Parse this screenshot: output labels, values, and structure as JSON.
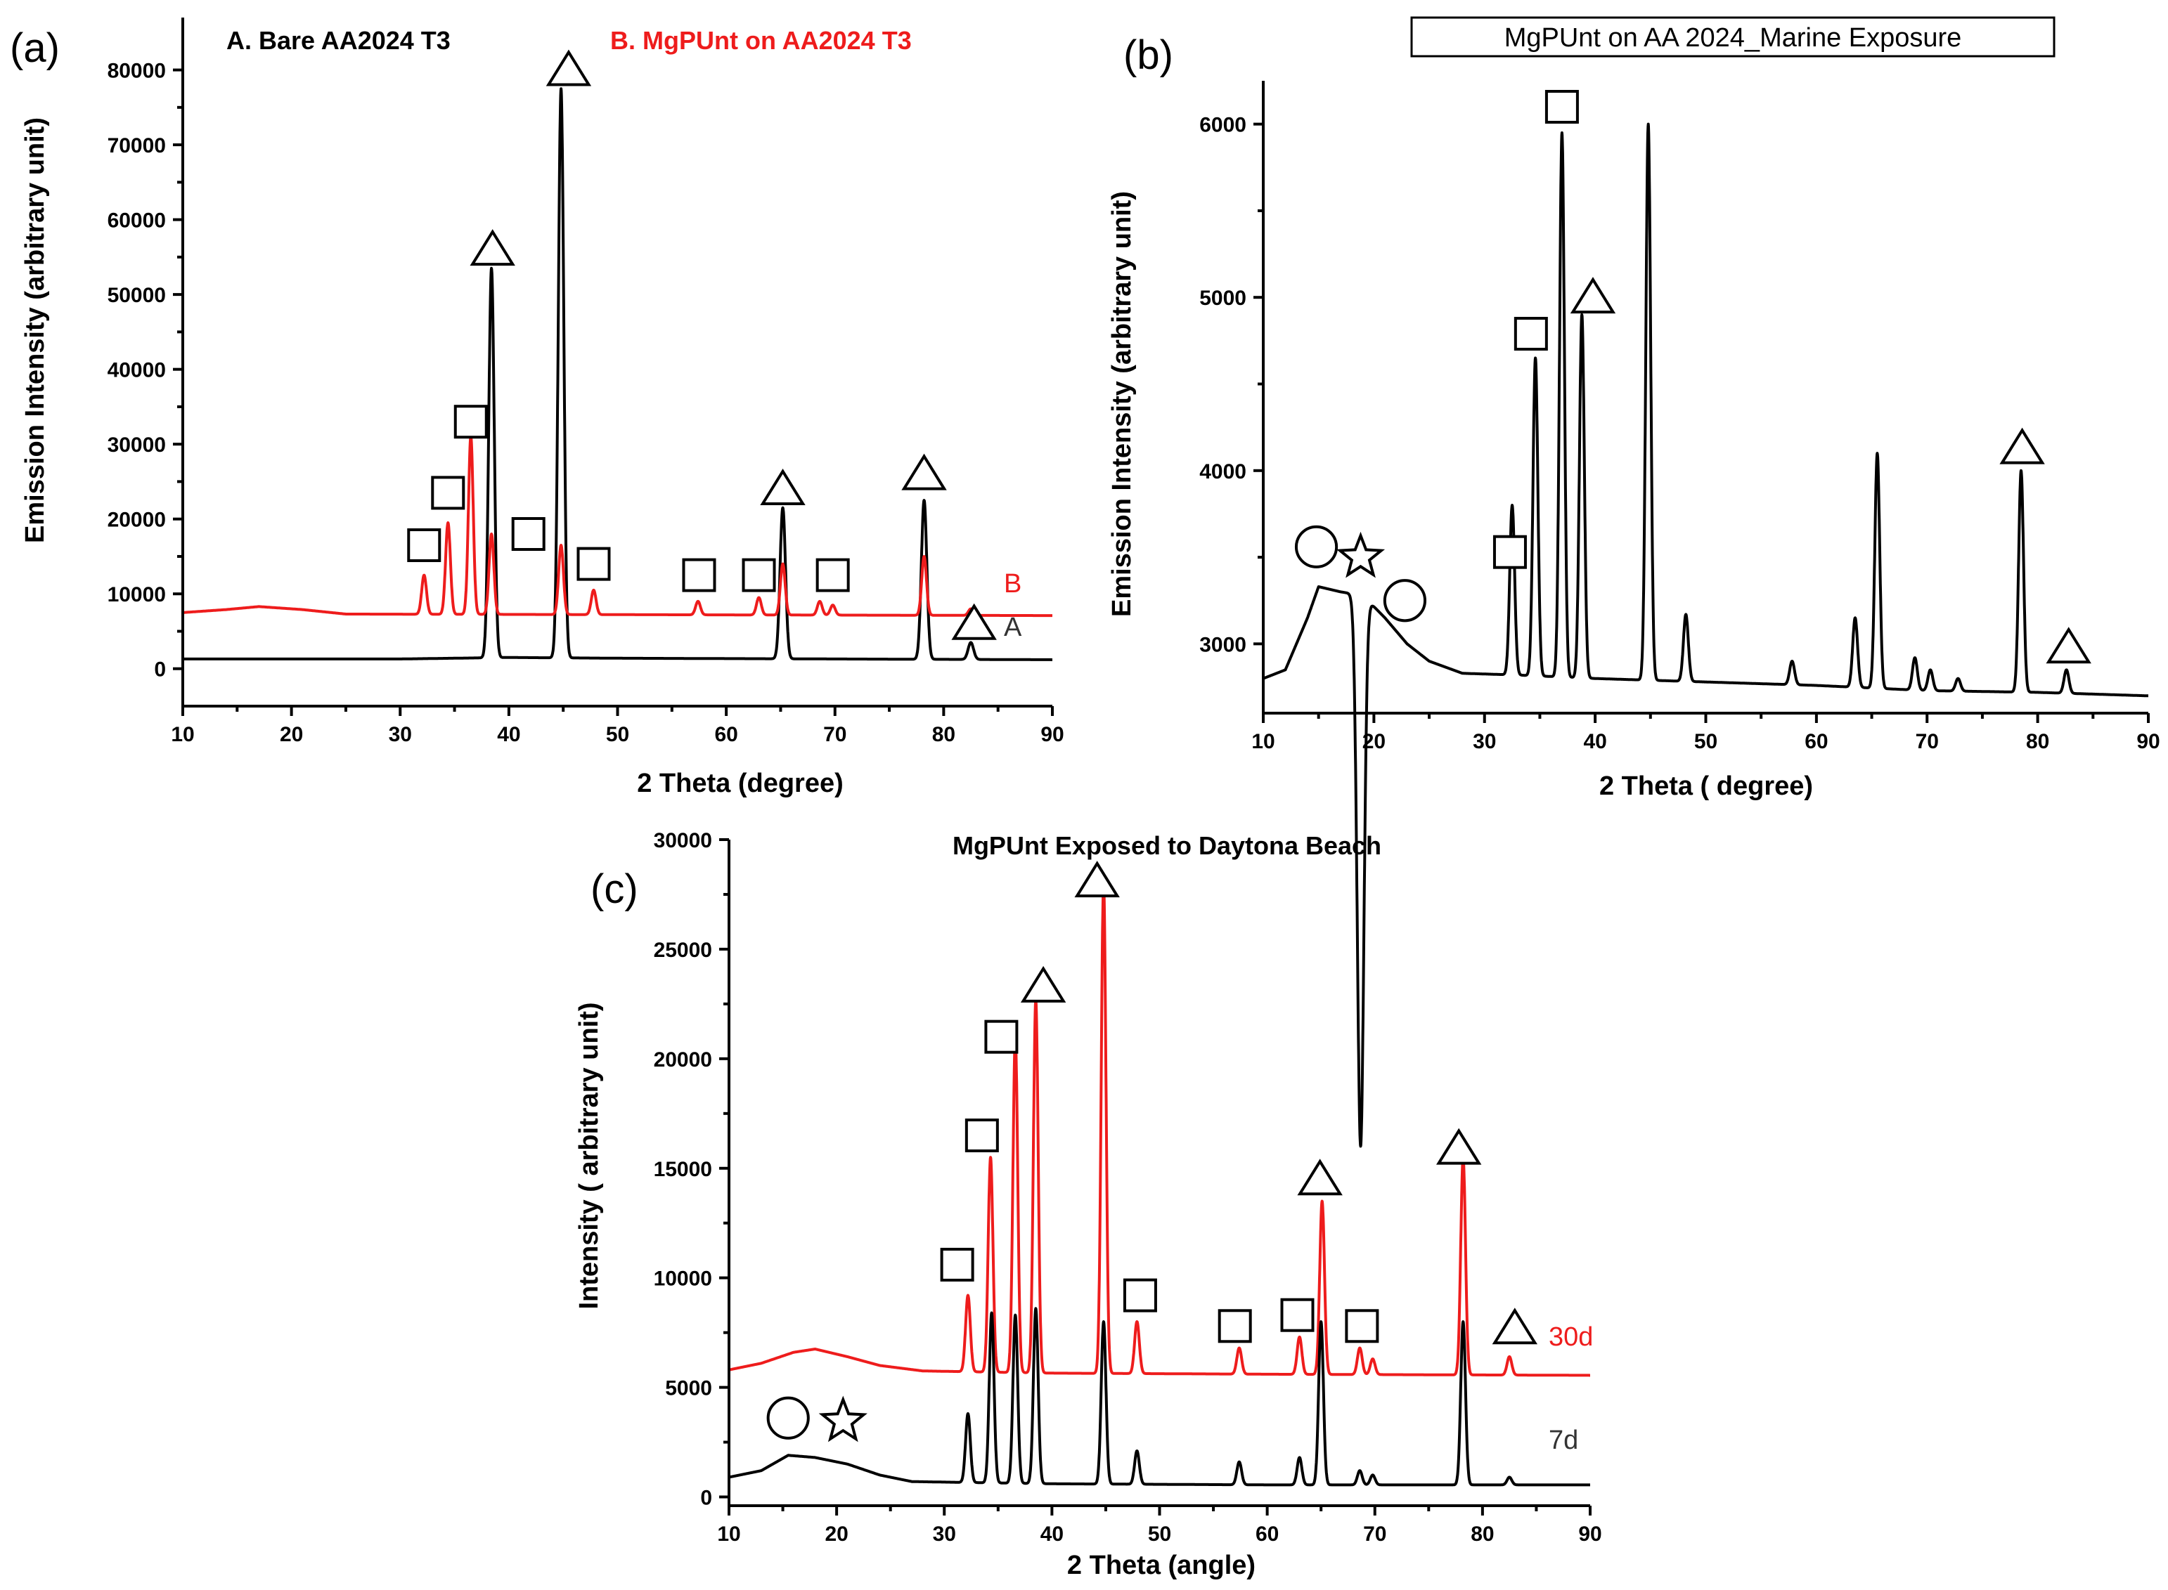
{
  "colors": {
    "black": "#000000",
    "red": "#ee1c1c"
  },
  "chart_data": [
    {
      "id": "a",
      "panel_label": "(a)",
      "type": "line",
      "title": "",
      "legend_texts": [
        "A. Bare AA2024 T3",
        "B. MgPUnt on AA2024 T3"
      ],
      "xlabel": "2 Theta (degree)",
      "ylabel": "Emission Intensity (arbitrary unit)",
      "xlim": [
        10,
        90
      ],
      "ylim": [
        -5000,
        87000
      ],
      "xticks": [
        10,
        20,
        30,
        40,
        50,
        60,
        70,
        80,
        90
      ],
      "yticks": [
        0,
        10000,
        20000,
        30000,
        40000,
        50000,
        60000,
        70000,
        80000
      ],
      "series": [
        {
          "name": "A",
          "color": "#000000",
          "end_label": "A",
          "baseline": [
            [
              10,
              1300
            ],
            [
              30,
              1300
            ],
            [
              40,
              1500
            ],
            [
              50,
              1400
            ],
            [
              70,
              1300
            ],
            [
              90,
              1200
            ]
          ],
          "peaks": [
            [
              38.4,
              53500,
              0.25
            ],
            [
              44.8,
              77500,
              0.25
            ],
            [
              65.2,
              21500,
              0.25
            ],
            [
              78.2,
              22500,
              0.25
            ],
            [
              82.5,
              3500,
              0.25
            ]
          ]
        },
        {
          "name": "B",
          "color": "#ee1c1c",
          "end_label": "B",
          "baseline": [
            [
              10,
              7500
            ],
            [
              14,
              7900
            ],
            [
              17,
              8300
            ],
            [
              21,
              7900
            ],
            [
              25,
              7300
            ],
            [
              90,
              7100
            ]
          ],
          "peaks": [
            [
              32.2,
              12500,
              0.22
            ],
            [
              34.4,
              19500,
              0.22
            ],
            [
              36.5,
              31000,
              0.22
            ],
            [
              38.4,
              18000,
              0.22
            ],
            [
              44.8,
              16500,
              0.22
            ],
            [
              47.8,
              10500,
              0.22
            ],
            [
              57.4,
              9000,
              0.22
            ],
            [
              63.0,
              9500,
              0.22
            ],
            [
              65.2,
              14000,
              0.22
            ],
            [
              68.6,
              9000,
              0.22
            ],
            [
              69.8,
              8500,
              0.22
            ],
            [
              78.2,
              15000,
              0.22
            ],
            [
              82.5,
              8000,
              0.22
            ]
          ]
        }
      ],
      "markers": [
        {
          "shape": "square",
          "x": 32.2,
          "y": 16500
        },
        {
          "shape": "square",
          "x": 34.4,
          "y": 23500
        },
        {
          "shape": "square",
          "x": 36.5,
          "y": 33000
        },
        {
          "shape": "triangle",
          "x": 38.5,
          "y": 56000
        },
        {
          "shape": "square",
          "x": 41.8,
          "y": 18000
        },
        {
          "shape": "triangle",
          "x": 45.5,
          "y": 80000
        },
        {
          "shape": "square",
          "x": 47.8,
          "y": 14000
        },
        {
          "shape": "square",
          "x": 57.5,
          "y": 12500
        },
        {
          "shape": "square",
          "x": 63.0,
          "y": 12500
        },
        {
          "shape": "triangle",
          "x": 65.2,
          "y": 24000
        },
        {
          "shape": "square",
          "x": 69.8,
          "y": 12500
        },
        {
          "shape": "triangle",
          "x": 78.2,
          "y": 26000
        },
        {
          "shape": "triangle",
          "x": 82.8,
          "y": 6000
        }
      ]
    },
    {
      "id": "b",
      "panel_label": "(b)",
      "type": "line",
      "title": "MgPUnt on AA 2024_Marine Exposure",
      "xlabel": "2 Theta ( degree)",
      "ylabel": "Emission Intensity (arbitrary unit)",
      "xlim": [
        10,
        90
      ],
      "ylim": [
        2600,
        6250
      ],
      "xticks": [
        10,
        20,
        30,
        40,
        50,
        60,
        70,
        80,
        90
      ],
      "yticks": [
        3000,
        4000,
        5000,
        6000
      ],
      "series": [
        {
          "name": "MgPUnt marine",
          "color": "#000000",
          "end_label": "",
          "baseline": [
            [
              10,
              2800
            ],
            [
              12,
              2850
            ],
            [
              14,
              3150
            ],
            [
              15,
              3330
            ],
            [
              17,
              3300
            ],
            [
              19,
              3280
            ],
            [
              21,
              3150
            ],
            [
              23,
              3000
            ],
            [
              25,
              2900
            ],
            [
              28,
              2830
            ],
            [
              33,
              2820
            ],
            [
              40,
              2800
            ],
            [
              50,
              2780
            ],
            [
              60,
              2760
            ],
            [
              70,
              2730
            ],
            [
              80,
              2720
            ],
            [
              90,
              2700
            ]
          ],
          "peaks": [
            [
              18.8,
              100,
              0.3
            ],
            [
              32.5,
              3800,
              0.22
            ],
            [
              34.6,
              4650,
              0.22
            ],
            [
              37.0,
              5950,
              0.22
            ],
            [
              38.8,
              4900,
              0.22
            ],
            [
              44.8,
              6000,
              0.22
            ],
            [
              48.2,
              3170,
              0.22
            ],
            [
              57.8,
              2900,
              0.22
            ],
            [
              63.5,
              3150,
              0.22
            ],
            [
              65.5,
              4100,
              0.22
            ],
            [
              68.9,
              2920,
              0.22
            ],
            [
              70.3,
              2850,
              0.22
            ],
            [
              72.8,
              2800,
              0.22
            ],
            [
              78.5,
              4000,
              0.22
            ],
            [
              82.6,
              2850,
              0.22
            ]
          ]
        }
      ],
      "markers": [
        {
          "shape": "circle",
          "x": 14.8,
          "y": 3560
        },
        {
          "shape": "star",
          "x": 18.8,
          "y": 3500
        },
        {
          "shape": "circle",
          "x": 22.8,
          "y": 3250
        },
        {
          "shape": "square",
          "x": 32.3,
          "y": 3530
        },
        {
          "shape": "square",
          "x": 34.2,
          "y": 4790
        },
        {
          "shape": "square",
          "x": 37.0,
          "y": 6100
        },
        {
          "shape": "triangle",
          "x": 39.8,
          "y": 5000
        },
        {
          "shape": "triangle",
          "x": 78.6,
          "y": 4130
        },
        {
          "shape": "triangle",
          "x": 82.8,
          "y": 2980
        }
      ]
    },
    {
      "id": "c",
      "panel_label": "(c)",
      "type": "line",
      "title": "MgPUnt Exposed to Daytona Beach",
      "xlabel": "2 Theta (angle)",
      "ylabel": "Intensity ( arbitrary unit)",
      "xlim": [
        10,
        90
      ],
      "ylim": [
        -400,
        30000
      ],
      "xticks": [
        10,
        20,
        30,
        40,
        50,
        60,
        70,
        80,
        90
      ],
      "yticks": [
        0,
        5000,
        10000,
        15000,
        20000,
        25000,
        30000
      ],
      "series": [
        {
          "name": "30d",
          "color": "#ee1c1c",
          "end_label": "30d",
          "baseline": [
            [
              10,
              5800
            ],
            [
              13,
              6100
            ],
            [
              16,
              6600
            ],
            [
              18,
              6750
            ],
            [
              21,
              6400
            ],
            [
              24,
              6000
            ],
            [
              28,
              5750
            ],
            [
              40,
              5650
            ],
            [
              60,
              5600
            ],
            [
              90,
              5550
            ]
          ],
          "peaks": [
            [
              32.2,
              9200,
              0.22
            ],
            [
              34.3,
              15500,
              0.22
            ],
            [
              36.6,
              21000,
              0.22
            ],
            [
              38.5,
              22700,
              0.22
            ],
            [
              44.8,
              28000,
              0.22
            ],
            [
              47.9,
              8000,
              0.22
            ],
            [
              57.4,
              6800,
              0.22
            ],
            [
              63.0,
              7300,
              0.22
            ],
            [
              65.1,
              13500,
              0.22
            ],
            [
              68.6,
              6800,
              0.22
            ],
            [
              69.8,
              6300,
              0.22
            ],
            [
              78.2,
              15500,
              0.22
            ],
            [
              82.5,
              6400,
              0.22
            ]
          ]
        },
        {
          "name": "7d",
          "color": "#000000",
          "end_label": "7d",
          "baseline": [
            [
              10,
              900
            ],
            [
              13,
              1200
            ],
            [
              15.5,
              1900
            ],
            [
              18,
              1800
            ],
            [
              21,
              1500
            ],
            [
              24,
              1000
            ],
            [
              27,
              700
            ],
            [
              40,
              600
            ],
            [
              60,
              550
            ],
            [
              90,
              550
            ]
          ],
          "peaks": [
            [
              32.2,
              3800,
              0.22
            ],
            [
              34.4,
              8400,
              0.22
            ],
            [
              36.6,
              8300,
              0.22
            ],
            [
              38.5,
              8600,
              0.22
            ],
            [
              44.8,
              8000,
              0.22
            ],
            [
              47.9,
              2100,
              0.22
            ],
            [
              57.4,
              1600,
              0.22
            ],
            [
              63.0,
              1800,
              0.22
            ],
            [
              65.0,
              8000,
              0.22
            ],
            [
              68.6,
              1200,
              0.22
            ],
            [
              69.8,
              1000,
              0.22
            ],
            [
              78.2,
              8000,
              0.22
            ],
            [
              82.5,
              900,
              0.22
            ]
          ]
        }
      ],
      "markers": [
        {
          "shape": "square",
          "x": 31.2,
          "y": 10600
        },
        {
          "shape": "square",
          "x": 33.5,
          "y": 16500
        },
        {
          "shape": "square",
          "x": 35.3,
          "y": 21000
        },
        {
          "shape": "triangle",
          "x": 39.2,
          "y": 23300
        },
        {
          "shape": "triangle",
          "x": 44.2,
          "y": 28100
        },
        {
          "shape": "square",
          "x": 48.2,
          "y": 9200
        },
        {
          "shape": "square",
          "x": 57.0,
          "y": 7800
        },
        {
          "shape": "square",
          "x": 62.8,
          "y": 8300
        },
        {
          "shape": "square",
          "x": 68.8,
          "y": 7800
        },
        {
          "shape": "triangle",
          "x": 64.9,
          "y": 14500
        },
        {
          "shape": "triangle",
          "x": 77.8,
          "y": 15900
        },
        {
          "shape": "triangle",
          "x": 83.0,
          "y": 7700
        },
        {
          "shape": "circle",
          "x": 15.5,
          "y": 3600
        },
        {
          "shape": "star",
          "x": 20.6,
          "y": 3450
        }
      ]
    }
  ]
}
